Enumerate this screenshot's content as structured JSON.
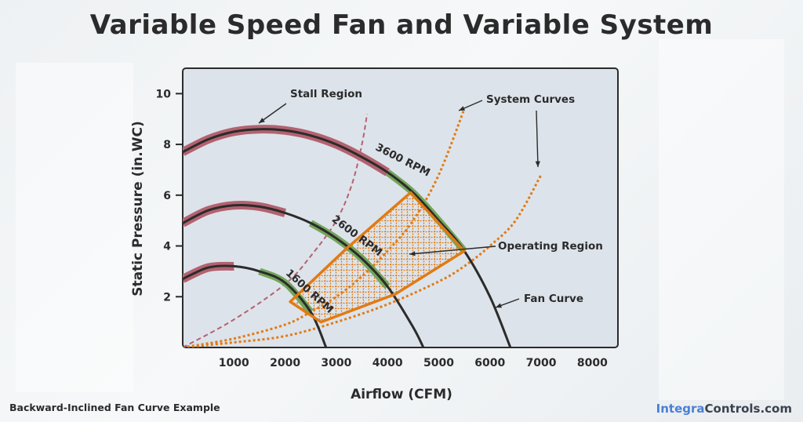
{
  "chart_data": {
    "type": "line",
    "title": "Variable Speed Fan and Variable System",
    "xlabel": "Airflow (CFM)",
    "ylabel": "Static Pressure (in.WC)",
    "xlim": [
      0,
      8500
    ],
    "ylim": [
      0,
      11
    ],
    "xticks": [
      "1000",
      "2000",
      "3000",
      "4000",
      "5000",
      "6000",
      "7000",
      "8000"
    ],
    "yticks": [
      "2",
      "4",
      "6",
      "8",
      "10"
    ],
    "fan_curves": [
      {
        "name": "3600 RPM",
        "x": [
          0,
          500,
          1000,
          1500,
          2000,
          2500,
          3000,
          3500,
          4000,
          4500,
          5000,
          5500,
          6000,
          6400
        ],
        "y": [
          7.7,
          8.2,
          8.5,
          8.6,
          8.55,
          8.35,
          8.0,
          7.5,
          6.9,
          6.1,
          5.0,
          3.8,
          2.0,
          0
        ]
      },
      {
        "name": "2600 RPM",
        "x": [
          0,
          500,
          1000,
          1500,
          2000,
          2500,
          3000,
          3500,
          4000,
          4500,
          4700
        ],
        "y": [
          4.9,
          5.4,
          5.6,
          5.55,
          5.3,
          4.9,
          4.3,
          3.5,
          2.4,
          0.8,
          0
        ]
      },
      {
        "name": "1600 RPM",
        "x": [
          0,
          500,
          1000,
          1500,
          2000,
          2500,
          2800
        ],
        "y": [
          2.7,
          3.15,
          3.2,
          3.0,
          2.55,
          1.4,
          0
        ]
      }
    ],
    "system_curves": [
      {
        "x": [
          0,
          1000,
          2000,
          2500,
          3000,
          3500,
          4000,
          4500,
          5000,
          5500
        ],
        "y": [
          0,
          0.35,
          0.9,
          1.4,
          2.0,
          2.8,
          3.8,
          5.0,
          6.8,
          9.4
        ]
      },
      {
        "x": [
          0,
          1000,
          2000,
          3000,
          4000,
          5000,
          5500,
          6000,
          6500,
          7000
        ],
        "y": [
          0,
          0.2,
          0.45,
          1.0,
          1.7,
          2.6,
          3.2,
          4.0,
          5.0,
          6.8
        ]
      }
    ],
    "stall_line": {
      "x": [
        0,
        1000,
        2000,
        2500,
        3000,
        3300,
        3500,
        3600
      ],
      "y": [
        0,
        1.1,
        2.5,
        3.6,
        5.0,
        6.4,
        8.0,
        9.2
      ]
    },
    "operating_region": {
      "x": [
        2100,
        2700,
        4150,
        5500,
        4450,
        3200
      ],
      "y": [
        1.8,
        1.0,
        2.1,
        3.8,
        6.1,
        3.9
      ]
    },
    "annotations": [
      {
        "label": "Stall Region"
      },
      {
        "label": "System Curves"
      },
      {
        "label": "Operating Region"
      },
      {
        "label": "Fan Curve"
      }
    ],
    "colors": {
      "fan_curve": "#2b2b2b",
      "stall": "#b36270",
      "operating": "#e07b14",
      "rated": "#73a55a",
      "plot_bg": "#dde3ea"
    }
  },
  "caption": "Backward-Inclined Fan Curve Example",
  "brand": {
    "part1": "Integra",
    "part2": "Controls.com",
    "color1": "#4a7fd6",
    "color2": "#3a4250"
  }
}
